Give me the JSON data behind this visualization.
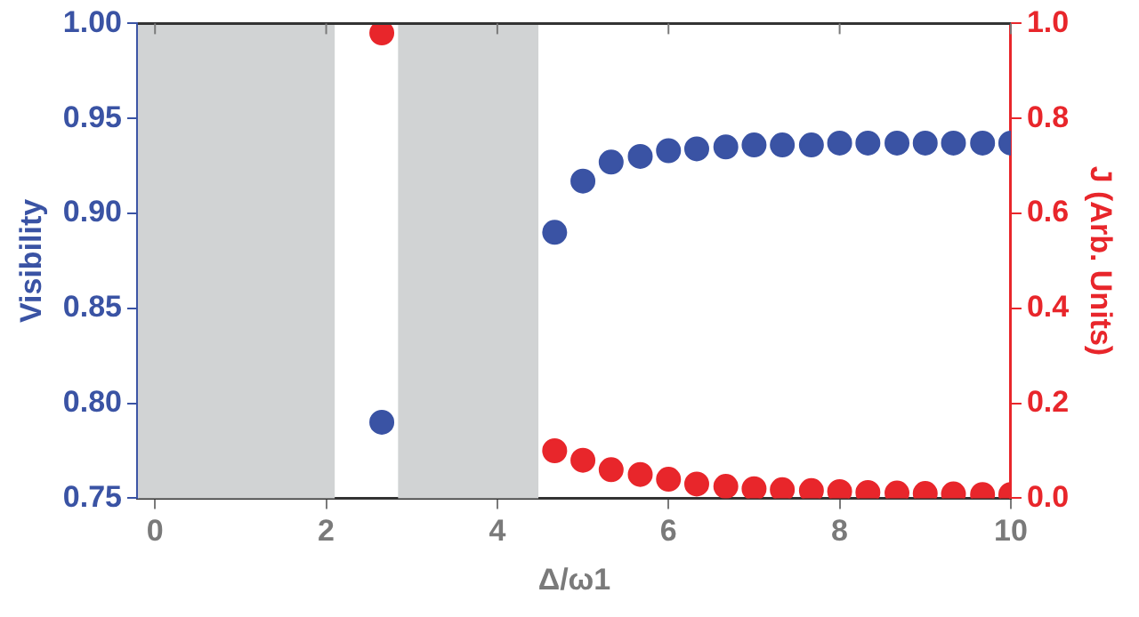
{
  "chart_data": {
    "type": "scatter",
    "xlabel": "Δ/ω1",
    "ylabel": "Visibility",
    "y2label": "J (Arb. Units)",
    "xlim": [
      -0.2,
      10
    ],
    "xticks": [
      0,
      2,
      4,
      6,
      8,
      10
    ],
    "ylim": [
      0.75,
      1.0
    ],
    "yticks": [
      0.75,
      {
        "value": 0.8,
        "label": "0.80"
      },
      0.85,
      {
        "value": 0.9,
        "label": "0.90"
      },
      0.95,
      {
        "value": 1,
        "label": "1.00"
      }
    ],
    "y2lim": [
      0,
      1.0
    ],
    "y2ticks": [
      {
        "value": 0,
        "label": "0.0"
      },
      0.2,
      0.4,
      0.6,
      0.8,
      {
        "value": 1,
        "label": "1.0"
      }
    ],
    "grid": false,
    "legend": false,
    "marker": "circle",
    "bands": [
      {
        "axis": "x",
        "from": -0.2,
        "to": 2.1,
        "color": "#d1d3d4"
      },
      {
        "axis": "x",
        "from": 2.84,
        "to": 4.48,
        "color": "#d1d3d4"
      }
    ],
    "series": [
      {
        "color": "#3a53a4",
        "x": [
          2.65,
          4.67,
          5.0,
          5.33,
          5.67,
          6.0,
          6.33,
          6.67,
          7.0,
          7.33,
          7.67,
          8.0,
          8.33,
          8.67,
          9.0,
          9.33,
          9.67,
          10.0
        ],
        "values": [
          0.79,
          0.89,
          0.917,
          0.927,
          0.93,
          0.933,
          0.934,
          0.935,
          0.936,
          0.936,
          0.936,
          0.937,
          0.937,
          0.937,
          0.937,
          0.937,
          0.937,
          0.937
        ]
      },
      {
        "color": "#e8262b",
        "axis": "y2",
        "x": [
          2.65,
          4.67,
          5.0,
          5.33,
          5.67,
          6.0,
          6.33,
          6.67,
          7.0,
          7.33,
          7.67,
          8.0,
          8.33,
          8.67,
          9.0,
          9.33,
          9.67,
          10.0
        ],
        "values": [
          0.98,
          0.1,
          0.08,
          0.06,
          0.05,
          0.04,
          0.03,
          0.025,
          0.02,
          0.018,
          0.016,
          0.014,
          0.012,
          0.011,
          0.01,
          0.009,
          0.008,
          0.008
        ]
      }
    ]
  }
}
